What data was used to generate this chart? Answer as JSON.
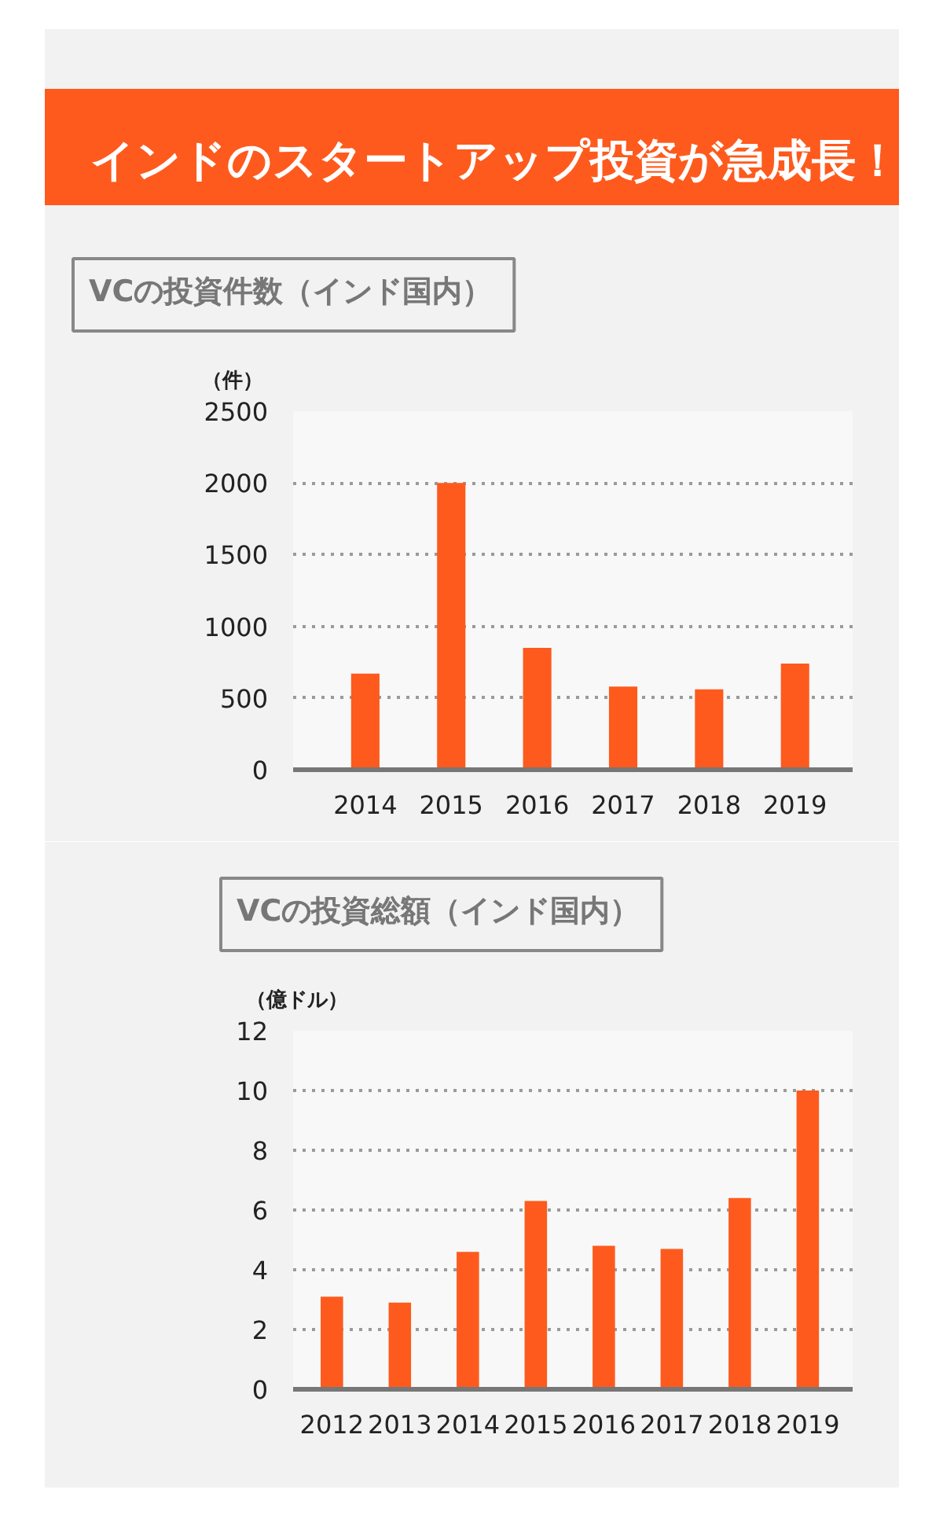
{
  "chart_data": [
    {
      "type": "bar",
      "title": "インドのスタートアップ投資が急成長！",
      "subtitle": "VCの投資件数（インド国内）",
      "ylabel": "（件）",
      "categories": [
        "2014",
        "2015",
        "2016",
        "2017",
        "2018",
        "2019"
      ],
      "values": [
        670,
        2000,
        850,
        580,
        560,
        740
      ],
      "color": "#fe5a1d",
      "ylim": [
        0,
        2500
      ],
      "yticks": [
        0,
        500,
        1000,
        1500,
        2000,
        2500
      ],
      "grid": "y"
    },
    {
      "type": "bar",
      "title": "VCの投資総額（インド国内）",
      "ylabel": "（億ドル）",
      "categories": [
        "2012",
        "2013",
        "2014",
        "2015",
        "2016",
        "2017",
        "2018",
        "2019"
      ],
      "values": [
        3.1,
        2.9,
        4.6,
        6.3,
        4.8,
        4.7,
        6.4,
        10.0
      ],
      "color": "#fe5a1d",
      "ylim": [
        0,
        12
      ],
      "yticks": [
        0,
        2,
        4,
        6,
        8,
        10,
        12
      ],
      "grid": "y"
    }
  ]
}
